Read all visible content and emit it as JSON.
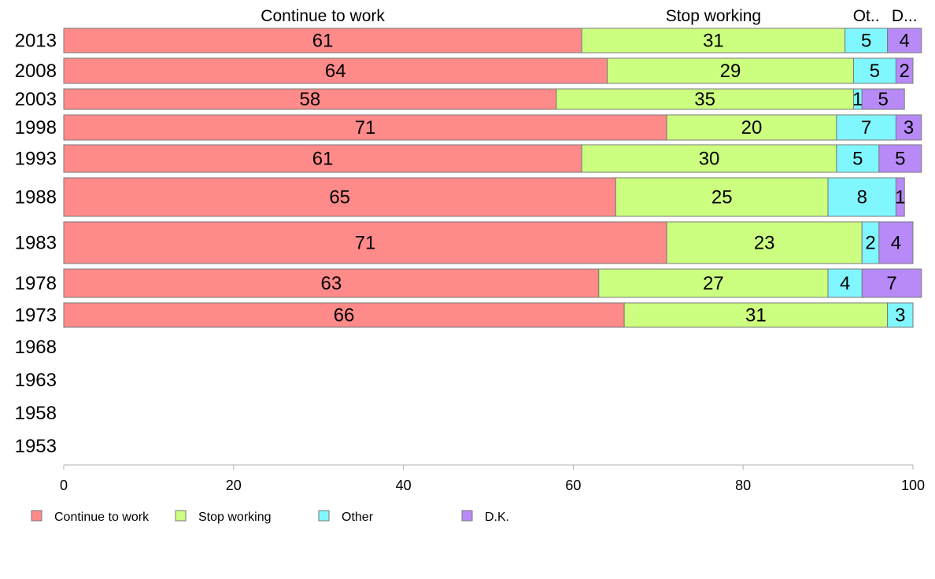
{
  "chart_data": {
    "type": "bar",
    "orientation": "horizontal",
    "stacked": true,
    "categories": [
      "2013",
      "2008",
      "2003",
      "1998",
      "1993",
      "1988",
      "1983",
      "1978",
      "1973",
      "1968",
      "1963",
      "1958",
      "1953"
    ],
    "series": [
      {
        "name": "Continue to work",
        "color": "#ff8a8a",
        "values": [
          61,
          64,
          58,
          71,
          61,
          65,
          71,
          63,
          66,
          null,
          null,
          null,
          null
        ]
      },
      {
        "name": "Stop working",
        "color": "#ccff80",
        "values": [
          31,
          29,
          35,
          20,
          30,
          25,
          23,
          27,
          31,
          null,
          null,
          null,
          null
        ]
      },
      {
        "name": "Other",
        "color": "#80f7ff",
        "values": [
          5,
          5,
          1,
          7,
          5,
          8,
          2,
          4,
          3,
          null,
          null,
          null,
          null
        ]
      },
      {
        "name": "D.K.",
        "color": "#b78af7",
        "values": [
          4,
          2,
          5,
          3,
          5,
          1,
          4,
          7,
          0,
          null,
          null,
          null,
          null
        ]
      }
    ],
    "column_headers": [
      "Continue to work",
      "Stop working",
      "Ot..",
      "D..."
    ],
    "xlim": [
      0,
      100
    ],
    "xticks": [
      "0",
      "20",
      "40",
      "60",
      "80",
      "100"
    ],
    "grid": false,
    "legend_position": "bottom-left"
  }
}
